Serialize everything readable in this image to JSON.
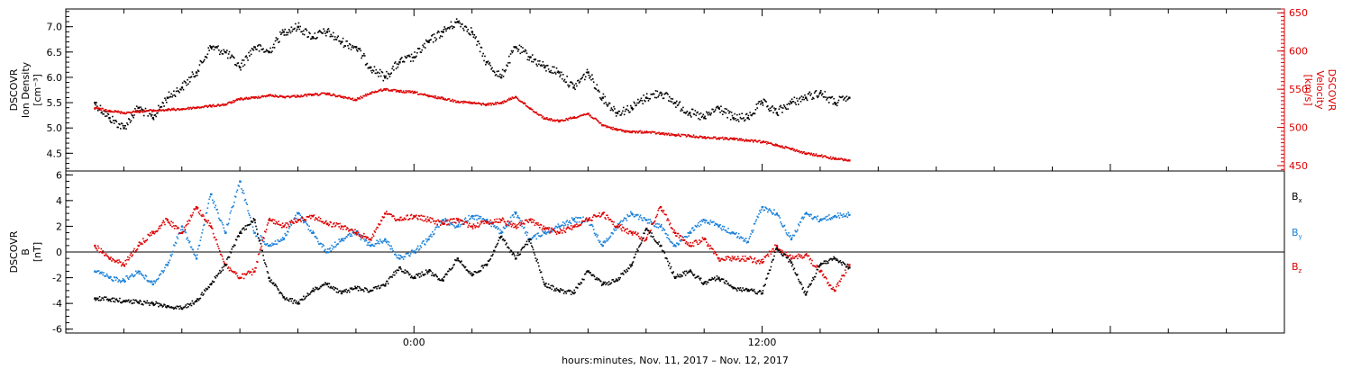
{
  "chart_data": [
    {
      "type": "scatter",
      "panel": "top",
      "title": "",
      "xlabel": "",
      "ylabel_left": [
        "DSCOVR",
        "Ion Density",
        "[cm⁻³]"
      ],
      "ylabel_right": [
        "DSCOVR",
        "Velocity",
        "[km/s]"
      ],
      "x_ticks": [
        "0:00",
        "12:00"
      ],
      "ylim_left": [
        4.15,
        7.35
      ],
      "yticks_left": [
        "4.5",
        "5.0",
        "5.5",
        "6.0",
        "6.5",
        "7.0"
      ],
      "ylim_right": [
        443,
        655
      ],
      "yticks_right": [
        "450",
        "500",
        "550",
        "600",
        "650"
      ],
      "grid": false,
      "series": [
        {
          "label": "Ion Density",
          "axis": "left",
          "color": "#000000",
          "x": [
            -11.0,
            -10.5,
            -10.0,
            -9.5,
            -9.0,
            -8.5,
            -8.0,
            -7.5,
            -7.0,
            -6.5,
            -6.0,
            -5.5,
            -5.0,
            -4.5,
            -4.0,
            -3.5,
            -3.0,
            -2.5,
            -2.0,
            -1.5,
            -1.0,
            -0.5,
            0.0,
            0.5,
            1.0,
            1.5,
            2.0,
            2.5,
            3.0,
            3.5,
            4.0,
            4.5,
            5.0,
            5.5,
            6.0,
            6.5,
            7.0,
            7.5,
            8.0,
            8.5,
            9.0,
            9.5,
            10.0,
            10.5,
            11.0,
            11.5,
            12.0,
            12.5,
            13.0,
            13.5,
            14.0,
            14.5,
            15.0
          ],
          "y": [
            5.5,
            5.2,
            5.0,
            5.4,
            5.2,
            5.6,
            5.8,
            6.1,
            6.6,
            6.5,
            6.2,
            6.6,
            6.5,
            6.9,
            7.0,
            6.8,
            6.9,
            6.7,
            6.6,
            6.2,
            6.0,
            6.3,
            6.4,
            6.7,
            6.9,
            7.1,
            6.9,
            6.3,
            6.0,
            6.6,
            6.4,
            6.2,
            6.1,
            5.8,
            6.1,
            5.6,
            5.3,
            5.4,
            5.6,
            5.7,
            5.5,
            5.3,
            5.2,
            5.4,
            5.2,
            5.2,
            5.5,
            5.3,
            5.5,
            5.6,
            5.7,
            5.5,
            5.6
          ]
        },
        {
          "label": "Velocity",
          "axis": "right",
          "color": "#dd0000",
          "x": [
            -11.0,
            -10.5,
            -10.0,
            -9.5,
            -9.0,
            -8.5,
            -8.0,
            -7.5,
            -7.0,
            -6.5,
            -6.0,
            -5.5,
            -5.0,
            -4.5,
            -4.0,
            -3.5,
            -3.0,
            -2.5,
            -2.0,
            -1.5,
            -1.0,
            -0.5,
            0.0,
            0.5,
            1.0,
            1.5,
            2.0,
            2.5,
            3.0,
            3.5,
            4.0,
            4.5,
            5.0,
            5.5,
            6.0,
            6.5,
            7.0,
            7.5,
            8.0,
            8.5,
            9.0,
            9.5,
            10.0,
            10.5,
            11.0,
            11.5,
            12.0,
            12.5,
            13.0,
            13.5,
            14.0,
            14.5,
            15.0
          ],
          "y": [
            525,
            522,
            519,
            521,
            522,
            523,
            524,
            526,
            528,
            530,
            537,
            539,
            542,
            540,
            541,
            543,
            544,
            540,
            536,
            545,
            550,
            547,
            546,
            541,
            538,
            534,
            532,
            530,
            532,
            540,
            525,
            512,
            508,
            513,
            518,
            503,
            497,
            494,
            494,
            492,
            490,
            489,
            487,
            486,
            485,
            483,
            481,
            477,
            472,
            466,
            463,
            459,
            457
          ]
        }
      ]
    },
    {
      "type": "scatter",
      "panel": "bottom",
      "title": "",
      "xlabel": "hours:minutes, Nov. 11, 2017 – Nov. 12, 2017",
      "ylabel_left": [
        "DSCOVR",
        "B",
        "[nT]"
      ],
      "x_ticks": [
        "0:00",
        "12:00"
      ],
      "ylim": [
        -6.3,
        6.3
      ],
      "yticks": [
        "-6",
        "-4",
        "-2",
        "0",
        "2",
        "4",
        "6"
      ],
      "zero_line": true,
      "grid": false,
      "legend_placement": "right",
      "series": [
        {
          "label": "Bx",
          "color": "#000000",
          "x": [
            -11.0,
            -10.5,
            -10.0,
            -9.5,
            -9.0,
            -8.5,
            -8.0,
            -7.5,
            -7.0,
            -6.5,
            -6.0,
            -5.5,
            -5.0,
            -4.5,
            -4.0,
            -3.5,
            -3.0,
            -2.5,
            -2.0,
            -1.5,
            -1.0,
            -0.5,
            0.0,
            0.5,
            1.0,
            1.5,
            2.0,
            2.5,
            3.0,
            3.5,
            4.0,
            4.5,
            5.0,
            5.5,
            6.0,
            6.5,
            7.0,
            7.5,
            8.0,
            8.5,
            9.0,
            9.5,
            10.0,
            10.5,
            11.0,
            11.5,
            12.0,
            12.5,
            13.0,
            13.5,
            14.0,
            14.5,
            15.0
          ],
          "y": [
            -3.6,
            -3.7,
            -3.8,
            -3.9,
            -4.0,
            -4.2,
            -4.4,
            -3.8,
            -2.5,
            -1.0,
            1.5,
            2.5,
            -2.0,
            -3.5,
            -4.0,
            -3.0,
            -2.5,
            -3.2,
            -2.8,
            -3.0,
            -2.6,
            -1.2,
            -2.0,
            -1.5,
            -2.2,
            -0.5,
            -1.8,
            -1.0,
            1.2,
            -0.5,
            1.0,
            -2.5,
            -3.0,
            -3.2,
            -1.5,
            -2.5,
            -2.2,
            -1.0,
            1.8,
            0.5,
            -2.0,
            -1.5,
            -2.4,
            -2.0,
            -2.8,
            -3.0,
            -3.2,
            0.3,
            -0.8,
            -3.3,
            -1.0,
            -0.5,
            -1.2
          ]
        },
        {
          "label": "By",
          "color": "#1a80d9",
          "x": [
            -11.0,
            -10.5,
            -10.0,
            -9.5,
            -9.0,
            -8.5,
            -8.0,
            -7.5,
            -7.0,
            -6.5,
            -6.0,
            -5.5,
            -5.0,
            -4.5,
            -4.0,
            -3.5,
            -3.0,
            -2.5,
            -2.0,
            -1.5,
            -1.0,
            -0.5,
            0.0,
            0.5,
            1.0,
            1.5,
            2.0,
            2.5,
            3.0,
            3.5,
            4.0,
            4.5,
            5.0,
            5.5,
            6.0,
            6.5,
            7.0,
            7.5,
            8.0,
            8.5,
            9.0,
            9.5,
            10.0,
            10.5,
            11.0,
            11.5,
            12.0,
            12.5,
            13.0,
            13.5,
            14.0,
            14.5,
            15.0
          ],
          "y": [
            -1.5,
            -2.0,
            -2.2,
            -1.5,
            -2.5,
            -1.0,
            2.0,
            -0.5,
            4.5,
            1.5,
            5.5,
            1.5,
            0.5,
            1.0,
            3.0,
            1.5,
            0.0,
            1.0,
            1.5,
            0.5,
            1.0,
            -0.5,
            0.0,
            1.0,
            2.5,
            2.0,
            2.8,
            2.5,
            1.5,
            3.0,
            1.0,
            1.5,
            2.0,
            2.5,
            2.5,
            0.5,
            2.0,
            3.0,
            2.5,
            2.0,
            0.5,
            1.5,
            2.5,
            2.0,
            1.5,
            0.8,
            3.5,
            3.0,
            1.0,
            3.0,
            2.5,
            2.8,
            2.9
          ]
        },
        {
          "label": "Bz",
          "color": "#dd0000",
          "x": [
            -11.0,
            -10.5,
            -10.0,
            -9.5,
            -9.0,
            -8.5,
            -8.0,
            -7.5,
            -7.0,
            -6.5,
            -6.0,
            -5.5,
            -5.0,
            -4.5,
            -4.0,
            -3.5,
            -3.0,
            -2.5,
            -2.0,
            -1.5,
            -1.0,
            -0.5,
            0.0,
            0.5,
            1.0,
            1.5,
            2.0,
            2.5,
            3.0,
            3.5,
            4.0,
            4.5,
            5.0,
            5.5,
            6.0,
            6.5,
            7.0,
            7.5,
            8.0,
            8.5,
            9.0,
            9.5,
            10.0,
            10.5,
            11.0,
            11.5,
            12.0,
            12.5,
            13.0,
            13.5,
            14.0,
            14.5,
            15.0
          ],
          "y": [
            0.5,
            -0.5,
            -1.0,
            0.5,
            1.5,
            2.5,
            1.5,
            3.5,
            2.0,
            -1.0,
            -2.0,
            -1.5,
            2.5,
            2.0,
            2.5,
            2.8,
            2.2,
            2.0,
            1.5,
            1.0,
            3.0,
            2.5,
            2.8,
            2.5,
            2.2,
            2.5,
            2.0,
            2.3,
            2.5,
            2.0,
            2.5,
            1.8,
            1.5,
            2.0,
            2.5,
            3.0,
            2.0,
            1.5,
            1.0,
            3.5,
            1.5,
            0.5,
            1.0,
            -0.5,
            -0.5,
            -0.5,
            -0.8,
            0.5,
            -0.5,
            -0.2,
            -1.5,
            -3.0,
            -1.0
          ]
        }
      ]
    }
  ],
  "legend": {
    "bx": {
      "base": "B",
      "sub": "x",
      "color": "#000000"
    },
    "by": {
      "base": "B",
      "sub": "y",
      "color": "#1a80d9"
    },
    "bz": {
      "base": "B",
      "sub": "z",
      "color": "#dd0000"
    }
  }
}
